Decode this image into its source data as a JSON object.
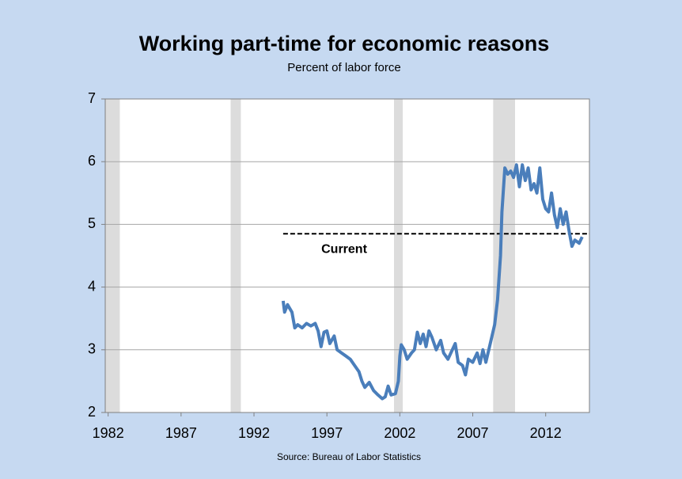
{
  "chart_data": {
    "type": "line",
    "title": "Working part-time for economic reasons",
    "subtitle": "Percent of labor force",
    "source": "Source: Bureau of Labor Statistics",
    "xlim": [
      1981.8,
      2015
    ],
    "xticks": [
      1982,
      1987,
      1992,
      1997,
      2002,
      2007,
      2012
    ],
    "ylim": [
      2,
      7
    ],
    "yticks": [
      2,
      3,
      4,
      5,
      6,
      7
    ],
    "grid": true,
    "shaded_periods": [
      [
        1981.8,
        1982.8
      ],
      [
        1990.4,
        1991.1
      ],
      [
        2001.6,
        2002.2
      ],
      [
        2008.4,
        2009.9
      ]
    ],
    "shade_color": "#dcdcdc",
    "reference_line": {
      "label": "Current",
      "value": 4.85,
      "x": [
        1994.0,
        2015
      ]
    },
    "series": [
      {
        "name": "Working part-time for economic reasons",
        "color": "#4a7ebb",
        "x": [
          1994.0,
          1994.1,
          1994.3,
          1994.6,
          1994.8,
          1995.0,
          1995.3,
          1995.6,
          1995.9,
          1996.2,
          1996.4,
          1996.6,
          1996.8,
          1997.0,
          1997.2,
          1997.5,
          1997.7,
          1998.0,
          1998.3,
          1998.6,
          1998.9,
          1999.2,
          1999.4,
          1999.6,
          1999.9,
          2000.2,
          2000.5,
          2000.8,
          2001.0,
          2001.2,
          2001.4,
          2001.7,
          2001.9,
          2002.0,
          2002.1,
          2002.3,
          2002.5,
          2002.8,
          2003.0,
          2003.2,
          2003.4,
          2003.6,
          2003.8,
          2004.0,
          2004.2,
          2004.5,
          2004.8,
          2005.0,
          2005.3,
          2005.6,
          2005.8,
          2006.0,
          2006.3,
          2006.5,
          2006.7,
          2007.0,
          2007.3,
          2007.5,
          2007.7,
          2007.9,
          2008.1,
          2008.3,
          2008.5,
          2008.7,
          2008.9,
          2009.0,
          2009.2,
          2009.4,
          2009.6,
          2009.8,
          2010.0,
          2010.2,
          2010.4,
          2010.6,
          2010.8,
          2011.0,
          2011.2,
          2011.4,
          2011.6,
          2011.8,
          2012.0,
          2012.2,
          2012.4,
          2012.6,
          2012.8,
          2013.0,
          2013.2,
          2013.4,
          2013.6,
          2013.8,
          2014.0,
          2014.3,
          2014.5
        ],
        "values": [
          3.78,
          3.6,
          3.72,
          3.6,
          3.35,
          3.4,
          3.35,
          3.42,
          3.38,
          3.42,
          3.3,
          3.05,
          3.28,
          3.3,
          3.1,
          3.22,
          3.0,
          2.95,
          2.9,
          2.85,
          2.75,
          2.65,
          2.5,
          2.4,
          2.48,
          2.35,
          2.28,
          2.22,
          2.25,
          2.42,
          2.28,
          2.3,
          2.5,
          2.9,
          3.08,
          3.0,
          2.85,
          2.95,
          3.0,
          3.28,
          3.1,
          3.25,
          3.05,
          3.3,
          3.2,
          3.0,
          3.15,
          2.95,
          2.85,
          3.0,
          3.1,
          2.8,
          2.75,
          2.6,
          2.85,
          2.8,
          2.95,
          2.78,
          3.0,
          2.8,
          3.0,
          3.2,
          3.4,
          3.8,
          4.5,
          5.2,
          5.9,
          5.8,
          5.85,
          5.75,
          5.95,
          5.6,
          5.95,
          5.7,
          5.9,
          5.55,
          5.65,
          5.5,
          5.9,
          5.4,
          5.25,
          5.2,
          5.5,
          5.15,
          4.95,
          5.25,
          5.0,
          5.2,
          4.9,
          4.65,
          4.75,
          4.7,
          4.8
        ]
      }
    ]
  }
}
